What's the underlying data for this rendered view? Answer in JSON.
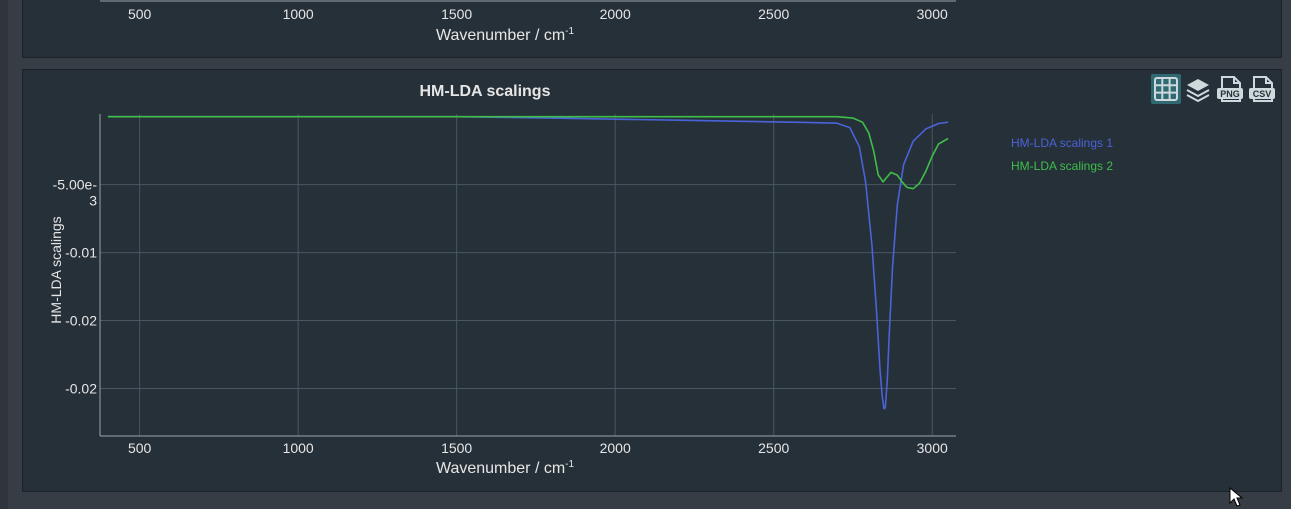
{
  "colors": {
    "background": "#373d44",
    "panel": "#263038",
    "grid": "#4a5660",
    "axis": "#9aa3aa",
    "text": "#e6e6e6",
    "series1": "#4a63d8",
    "series2": "#3fbf4a",
    "active_button": "#2f6a73"
  },
  "top_panel": {
    "x_ticks": [
      "500",
      "1000",
      "1500",
      "2000",
      "2500",
      "3000"
    ],
    "xlabel": "Wavenumber / cm",
    "xlabel_sup": "-1"
  },
  "toolbar": {
    "buttons": [
      {
        "icon": "grid-icon",
        "label": ""
      },
      {
        "icon": "layers-icon",
        "label": ""
      },
      {
        "icon": "png-export-icon",
        "label": "PNG"
      },
      {
        "icon": "csv-export-icon",
        "label": "CSV"
      }
    ]
  },
  "chart_data": {
    "type": "line",
    "title": "HM-LDA scalings",
    "xlabel": "Wavenumber / cm",
    "xlabel_sup": "-1",
    "ylabel": "HM-LDA scalings",
    "xlim": [
      375,
      3075
    ],
    "ylim": [
      -0.0235,
      0.0002
    ],
    "x_ticks": [
      500,
      1000,
      1500,
      2000,
      2500,
      3000
    ],
    "x_tick_labels": [
      "500",
      "1000",
      "1500",
      "2000",
      "2500",
      "3000"
    ],
    "y_ticks": [
      -0.005,
      -0.01,
      -0.015,
      -0.02
    ],
    "y_tick_labels": [
      "-5.00e-3",
      "-0.01",
      "-0.02",
      "-0.02"
    ],
    "grid": true,
    "legend_position": "right",
    "series": [
      {
        "name": "HM-LDA scalings 1",
        "color": "#4a63d8",
        "x": [
          400,
          1000,
          1500,
          1800,
          2000,
          2200,
          2400,
          2600,
          2700,
          2740,
          2770,
          2790,
          2810,
          2825,
          2835,
          2842,
          2848,
          2852,
          2858,
          2865,
          2875,
          2890,
          2910,
          2940,
          2980,
          3020,
          3050
        ],
        "y": [
          0.0,
          0.0,
          0.0,
          -0.0001,
          -0.00018,
          -0.00026,
          -0.00034,
          -0.00042,
          -0.00048,
          -0.0008,
          -0.0022,
          -0.0048,
          -0.0095,
          -0.0145,
          -0.0185,
          -0.0205,
          -0.0215,
          -0.0214,
          -0.0195,
          -0.0158,
          -0.011,
          -0.0065,
          -0.0035,
          -0.0018,
          -0.0009,
          -0.0005,
          -0.0004
        ]
      },
      {
        "name": "HM-LDA scalings 2",
        "color": "#3fbf4a",
        "x": [
          400,
          1000,
          1500,
          2000,
          2500,
          2700,
          2750,
          2780,
          2800,
          2815,
          2830,
          2845,
          2855,
          2870,
          2890,
          2905,
          2920,
          2940,
          2960,
          2980,
          3000,
          3020,
          3050
        ],
        "y": [
          0.0,
          0.0,
          0.0,
          0.0,
          0.0,
          0.0,
          -0.0001,
          -0.0004,
          -0.0012,
          -0.0025,
          -0.0043,
          -0.0048,
          -0.0045,
          -0.0041,
          -0.0043,
          -0.0048,
          -0.0052,
          -0.0053,
          -0.0049,
          -0.004,
          -0.0029,
          -0.002,
          -0.0016
        ]
      }
    ]
  },
  "cursor": {
    "icon": "mouse-pointer-icon"
  }
}
